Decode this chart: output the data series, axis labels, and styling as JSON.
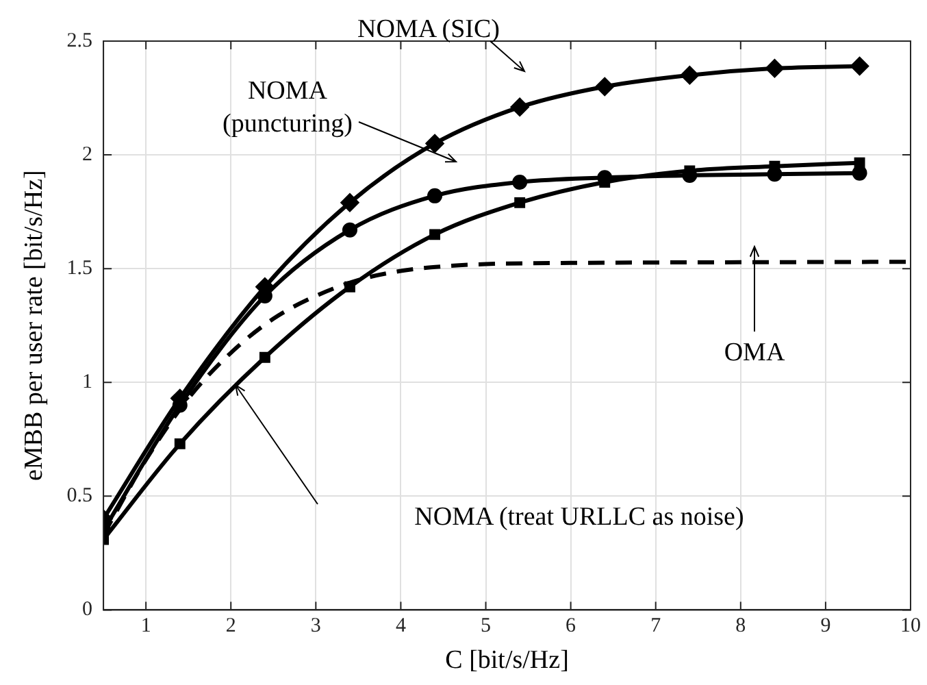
{
  "chart_data": {
    "type": "line",
    "xlabel": "C [bit/s/Hz]",
    "ylabel": "eMBB per user rate [bit/s/Hz]",
    "xlim": [
      0.5,
      10
    ],
    "xticks": [
      1,
      2,
      3,
      4,
      5,
      6,
      7,
      8,
      9,
      10
    ],
    "ylim": [
      0,
      2.5
    ],
    "yticks": [
      0,
      0.5,
      1,
      1.5,
      2,
      2.5
    ],
    "grid": true,
    "legend": false,
    "series": [
      {
        "color": "#000000",
        "marker": "diamond",
        "line_style": "solid",
        "x": [
          0.5,
          1.4,
          2.4,
          3.4,
          4.4,
          5.4,
          6.4,
          7.4,
          8.4,
          9.4
        ],
        "values": [
          0.4,
          0.93,
          1.42,
          1.79,
          2.05,
          2.21,
          2.3,
          2.35,
          2.38,
          2.39
        ]
      },
      {
        "color": "#000000",
        "marker": "circle",
        "line_style": "solid",
        "x": [
          0.5,
          1.4,
          2.4,
          3.4,
          4.4,
          5.4,
          6.4,
          7.4,
          8.4,
          9.4
        ],
        "values": [
          0.35,
          0.9,
          1.38,
          1.67,
          1.82,
          1.88,
          1.9,
          1.91,
          1.915,
          1.92
        ]
      },
      {
        "color": "#000000",
        "marker": "square",
        "line_style": "solid",
        "x": [
          0.5,
          1.4,
          2.4,
          3.4,
          4.4,
          5.4,
          6.4,
          7.4,
          8.4,
          9.4
        ],
        "values": [
          0.31,
          0.73,
          1.11,
          1.42,
          1.65,
          1.79,
          1.88,
          1.93,
          1.95,
          1.965
        ]
      },
      {
        "color": "#000000",
        "marker": "none",
        "line_style": "dashed",
        "x": [
          0.5,
          1,
          1.5,
          2,
          2.5,
          3,
          3.5,
          4,
          4.5,
          5,
          6,
          7,
          8,
          9,
          10
        ],
        "values": [
          0.33,
          0.66,
          0.93,
          1.13,
          1.28,
          1.38,
          1.45,
          1.49,
          1.51,
          1.52,
          1.525,
          1.527,
          1.528,
          1.529,
          1.53
        ]
      }
    ],
    "annotations": [
      "NOMA (SIC)",
      "NOMA\n(puncturing)",
      "OMA",
      "NOMA (treat URLLC as noise)"
    ]
  }
}
